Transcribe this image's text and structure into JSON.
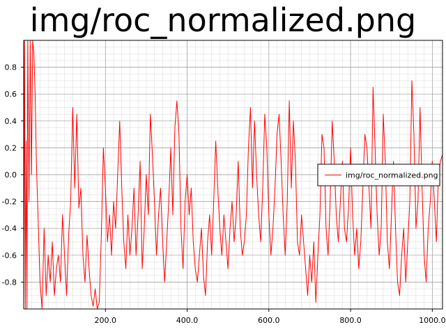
{
  "chart_data": {
    "type": "line",
    "title": "img/roc_normalized.png",
    "xlabel": "",
    "ylabel": "",
    "xlim": [
      0,
      1025
    ],
    "ylim": [
      -1.0,
      1.0
    ],
    "x_ticks": [
      200,
      400,
      600,
      800,
      1000
    ],
    "x_tick_labels": [
      "200.0",
      "400.0",
      "600.0",
      "800.0",
      "1000.0"
    ],
    "y_ticks": [
      -0.8,
      -0.6,
      -0.4,
      -0.2,
      0.0,
      0.2,
      0.4,
      0.6,
      0.8
    ],
    "y_tick_labels": [
      "-0.8",
      "-0.6",
      "-0.4",
      "-0.2",
      "0.0",
      "0.2",
      "0.4",
      "0.6",
      "0.8"
    ],
    "grid": true,
    "minor_grid": true,
    "legend_position": "right",
    "series": [
      {
        "name": "img/roc_normalized.png",
        "color": "#ff0000",
        "x": [
          0,
          2,
          4,
          6,
          8,
          10,
          13,
          16,
          19,
          22,
          25,
          28,
          31,
          34,
          37,
          40,
          45,
          50,
          55,
          60,
          65,
          70,
          75,
          80,
          85,
          90,
          95,
          100,
          105,
          110,
          115,
          120,
          125,
          130,
          135,
          140,
          145,
          150,
          155,
          160,
          165,
          170,
          175,
          180,
          185,
          190,
          195,
          200,
          205,
          210,
          215,
          220,
          225,
          230,
          235,
          240,
          245,
          250,
          255,
          260,
          265,
          270,
          275,
          280,
          285,
          290,
          295,
          300,
          305,
          310,
          315,
          320,
          325,
          330,
          335,
          340,
          345,
          350,
          355,
          360,
          365,
          370,
          375,
          380,
          385,
          390,
          395,
          400,
          405,
          410,
          415,
          420,
          425,
          430,
          435,
          440,
          445,
          450,
          455,
          460,
          465,
          470,
          475,
          480,
          485,
          490,
          495,
          500,
          505,
          510,
          515,
          520,
          525,
          530,
          535,
          540,
          545,
          550,
          555,
          560,
          565,
          570,
          575,
          580,
          585,
          590,
          595,
          600,
          605,
          610,
          615,
          620,
          625,
          630,
          635,
          640,
          645,
          650,
          655,
          660,
          665,
          670,
          675,
          680,
          685,
          690,
          695,
          700,
          705,
          710,
          715,
          720,
          725,
          730,
          735,
          740,
          745,
          750,
          755,
          760,
          765,
          770,
          775,
          780,
          785,
          790,
          795,
          800,
          805,
          810,
          815,
          820,
          825,
          830,
          835,
          840,
          845,
          850,
          855,
          860,
          865,
          870,
          875,
          880,
          885,
          890,
          895,
          900,
          905,
          910,
          915,
          920,
          925,
          930,
          935,
          940,
          945,
          950,
          955,
          960,
          965,
          970,
          975,
          980,
          985,
          990,
          995,
          1000,
          1005,
          1010,
          1015,
          1020,
          1025
        ],
        "y": [
          -1.0,
          1.0,
          -1.0,
          0.25,
          -1.0,
          1.0,
          -0.2,
          1.0,
          0.0,
          1.0,
          0.9,
          0.6,
          0.1,
          -0.2,
          -0.5,
          -0.8,
          -1.0,
          -0.4,
          -0.9,
          -0.6,
          -0.8,
          -0.5,
          -0.9,
          -0.7,
          -0.6,
          -0.8,
          -0.3,
          -0.6,
          -0.9,
          -0.45,
          -0.2,
          0.5,
          -0.1,
          0.45,
          -0.25,
          -0.1,
          -0.6,
          -0.8,
          -0.45,
          -0.7,
          -0.9,
          -0.98,
          -0.85,
          -1.0,
          -0.95,
          -0.45,
          0.2,
          -0.1,
          -0.5,
          -0.3,
          -0.6,
          -0.2,
          -0.4,
          0.0,
          0.4,
          -0.1,
          -0.5,
          -0.7,
          -0.3,
          -0.6,
          -0.4,
          -0.1,
          -0.6,
          -0.3,
          0.1,
          -0.7,
          -0.4,
          0.0,
          -0.3,
          0.45,
          0.15,
          -0.2,
          -0.6,
          -0.3,
          -0.1,
          -0.5,
          -0.8,
          -0.5,
          -0.2,
          0.2,
          -0.3,
          0.35,
          0.55,
          0.3,
          -0.4,
          -0.7,
          -0.2,
          0.0,
          -0.3,
          -0.1,
          -0.5,
          -0.7,
          -0.8,
          -0.6,
          -0.4,
          -0.75,
          -0.9,
          -0.5,
          -0.3,
          -0.6,
          -0.2,
          0.25,
          -0.1,
          -0.4,
          -0.6,
          -0.3,
          -0.5,
          -0.7,
          -0.4,
          -0.2,
          -0.5,
          -0.3,
          0.1,
          -0.4,
          -0.6,
          -0.5,
          -0.3,
          0.2,
          0.5,
          -0.1,
          0.4,
          0.0,
          -0.3,
          -0.5,
          -0.1,
          0.45,
          0.2,
          -0.3,
          -0.6,
          -0.4,
          -0.1,
          0.3,
          0.45,
          0.1,
          -0.3,
          -0.6,
          -0.2,
          0.55,
          -0.1,
          0.4,
          0.1,
          -0.5,
          -0.6,
          -0.3,
          -0.5,
          -0.7,
          -0.9,
          -0.6,
          -0.8,
          -0.5,
          -0.95,
          -0.6,
          -0.3,
          0.3,
          0.2,
          -0.4,
          -0.6,
          -0.2,
          0.4,
          0.1,
          -0.3,
          -0.5,
          -0.2,
          0.1,
          -0.4,
          -0.5,
          -0.25,
          0.2,
          -0.3,
          -0.6,
          -0.4,
          -0.7,
          -0.5,
          -0.1,
          0.3,
          0.2,
          -0.1,
          -0.4,
          0.65,
          0.2,
          -0.3,
          -0.6,
          -0.4,
          0.45,
          0.1,
          -0.5,
          -0.7,
          -0.3,
          0.1,
          -0.4,
          -0.8,
          -0.9,
          -0.6,
          -0.4,
          -0.8,
          -0.5,
          -0.2,
          0.7,
          0.3,
          -0.4,
          -0.2,
          0.5,
          -0.1,
          -0.6,
          -0.8,
          -0.4,
          -0.2,
          0.1,
          -0.2,
          -0.5,
          0.0,
          0.1,
          0.15
        ]
      }
    ]
  }
}
